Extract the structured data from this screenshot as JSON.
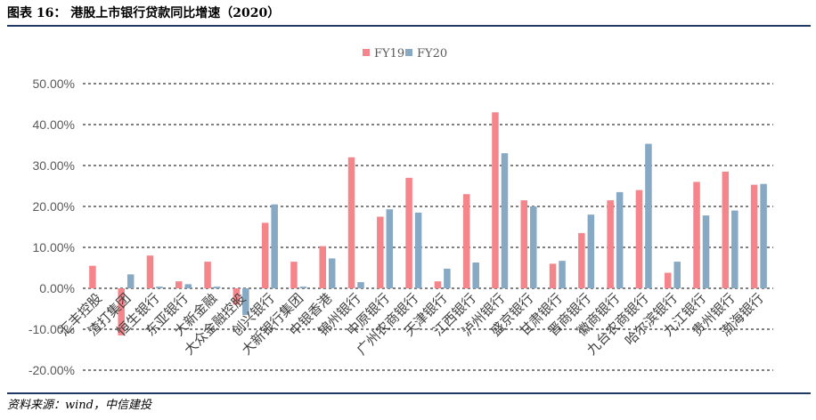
{
  "figure": {
    "title": "图表 16：   港股上市银行贷款同比增速（2020）",
    "source": "资料来源：wind，中信建投"
  },
  "colors": {
    "fy19": "#f4858a",
    "fy20": "#87a9c3",
    "grid": "#000000",
    "axis_text": "#595959"
  },
  "chart_data": {
    "type": "bar",
    "categories": [
      "汇丰控股",
      "渣打集团",
      "恒生银行",
      "东亚银行",
      "大新金融",
      "大众金融控股",
      "创兴银行",
      "大新银行集团",
      "中银香港",
      "锦州银行",
      "中原银行",
      "广州农商银行",
      "天津银行",
      "江西银行",
      "泸州银行",
      "盛京银行",
      "甘肃银行",
      "晋商银行",
      "徽商银行",
      "九台农商银行",
      "哈尔滨银行",
      "九江银行",
      "贵州银行",
      "渤海银行"
    ],
    "series": [
      {
        "name": "FY19",
        "values": [
          5.5,
          -11.5,
          8.0,
          1.7,
          6.5,
          -4.0,
          16.0,
          6.5,
          10.3,
          32.0,
          17.5,
          27.0,
          1.7,
          23.0,
          43.0,
          21.5,
          6.0,
          13.5,
          21.5,
          24.0,
          3.8,
          26.0,
          28.5,
          25.3
        ]
      },
      {
        "name": "FY20",
        "values": [
          0,
          3.4,
          0.4,
          1.0,
          0.4,
          -6.5,
          20.5,
          0.4,
          7.3,
          1.5,
          19.3,
          18.5,
          4.8,
          6.3,
          33.0,
          20.0,
          6.7,
          18.0,
          23.5,
          35.3,
          6.5,
          17.8,
          19.0,
          25.5
        ]
      }
    ],
    "yticks": [
      "-20.00%",
      "-10.00%",
      "0.00%",
      "10.00%",
      "20.00%",
      "30.00%",
      "40.00%",
      "50.00%"
    ],
    "ylim": [
      -20,
      50
    ],
    "legend_position": "top",
    "grid": "dashed horizontal"
  }
}
